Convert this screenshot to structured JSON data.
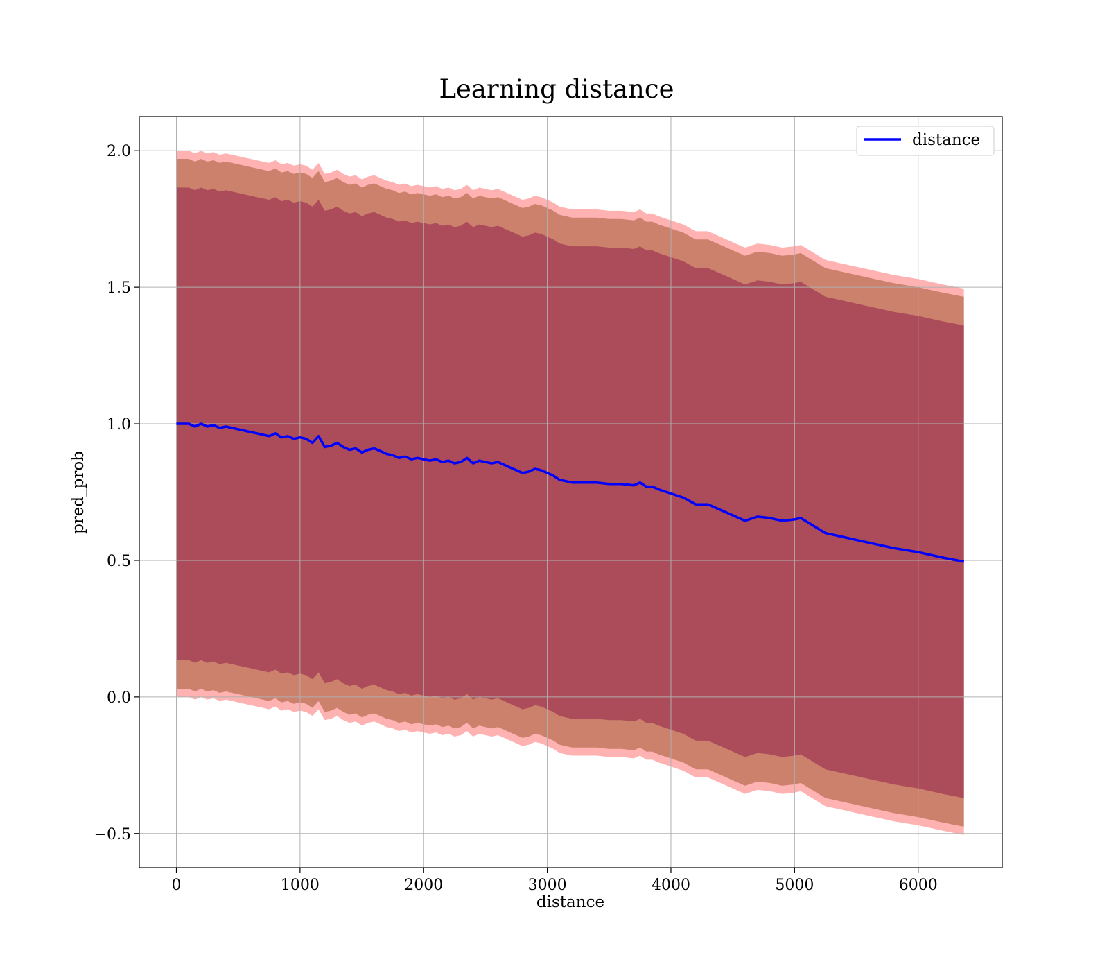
{
  "chart_data": {
    "type": "line",
    "title": "Learning distance",
    "xlabel": "distance",
    "ylabel": "pred_prob",
    "xlim": [
      -300,
      6680
    ],
    "ylim": [
      -0.625,
      2.125
    ],
    "xticks": [
      0,
      1000,
      2000,
      3000,
      4000,
      5000,
      6000
    ],
    "yticks": [
      -0.5,
      0.0,
      0.5,
      1.0,
      1.5,
      2.0
    ],
    "ytick_labels": [
      "−0.5",
      "0.0",
      "0.5",
      "1.0",
      "1.5",
      "2.0"
    ],
    "grid": true,
    "legend": {
      "position": "top-right",
      "entries": [
        "distance"
      ]
    },
    "colors": {
      "line": "#0000ff",
      "band_outer": "#ff0000",
      "band_middle": "#8b4513",
      "band_inner": "#800040",
      "grid": "#b0b0b0"
    },
    "series": [
      {
        "name": "distance",
        "x": [
          0,
          50,
          100,
          150,
          200,
          250,
          300,
          350,
          400,
          450,
          500,
          550,
          600,
          650,
          700,
          750,
          800,
          850,
          900,
          950,
          1000,
          1050,
          1100,
          1150,
          1200,
          1250,
          1300,
          1350,
          1400,
          1450,
          1500,
          1550,
          1600,
          1650,
          1700,
          1750,
          1800,
          1850,
          1900,
          1950,
          2000,
          2050,
          2100,
          2150,
          2200,
          2250,
          2300,
          2350,
          2400,
          2450,
          2500,
          2550,
          2600,
          2650,
          2700,
          2750,
          2800,
          2850,
          2900,
          2950,
          3000,
          3050,
          3100,
          3150,
          3200,
          3300,
          3400,
          3500,
          3600,
          3700,
          3750,
          3800,
          3850,
          3900,
          4000,
          4100,
          4200,
          4300,
          4400,
          4500,
          4600,
          4700,
          4800,
          4900,
          5000,
          5050,
          5250,
          5400,
          5600,
          5800,
          6000,
          6200,
          6370
        ],
        "values": [
          1.0,
          1.0,
          1.0,
          0.99,
          1.0,
          0.99,
          0.995,
          0.985,
          0.99,
          0.985,
          0.98,
          0.975,
          0.97,
          0.965,
          0.96,
          0.955,
          0.965,
          0.95,
          0.955,
          0.945,
          0.95,
          0.945,
          0.93,
          0.955,
          0.915,
          0.92,
          0.93,
          0.915,
          0.905,
          0.91,
          0.895,
          0.905,
          0.91,
          0.9,
          0.89,
          0.885,
          0.875,
          0.88,
          0.87,
          0.875,
          0.87,
          0.865,
          0.87,
          0.86,
          0.865,
          0.855,
          0.86,
          0.875,
          0.855,
          0.865,
          0.86,
          0.855,
          0.86,
          0.85,
          0.84,
          0.83,
          0.82,
          0.825,
          0.835,
          0.83,
          0.82,
          0.81,
          0.795,
          0.79,
          0.785,
          0.785,
          0.785,
          0.78,
          0.78,
          0.775,
          0.785,
          0.77,
          0.77,
          0.76,
          0.745,
          0.73,
          0.705,
          0.705,
          0.685,
          0.665,
          0.645,
          0.66,
          0.655,
          0.645,
          0.65,
          0.655,
          0.6,
          0.585,
          0.565,
          0.545,
          0.53,
          0.51,
          0.495
        ]
      }
    ],
    "bands": [
      {
        "role": "outer",
        "half_width": 1.0
      },
      {
        "role": "middle",
        "half_width": 0.97
      },
      {
        "role": "inner",
        "half_width": 0.865
      }
    ]
  }
}
